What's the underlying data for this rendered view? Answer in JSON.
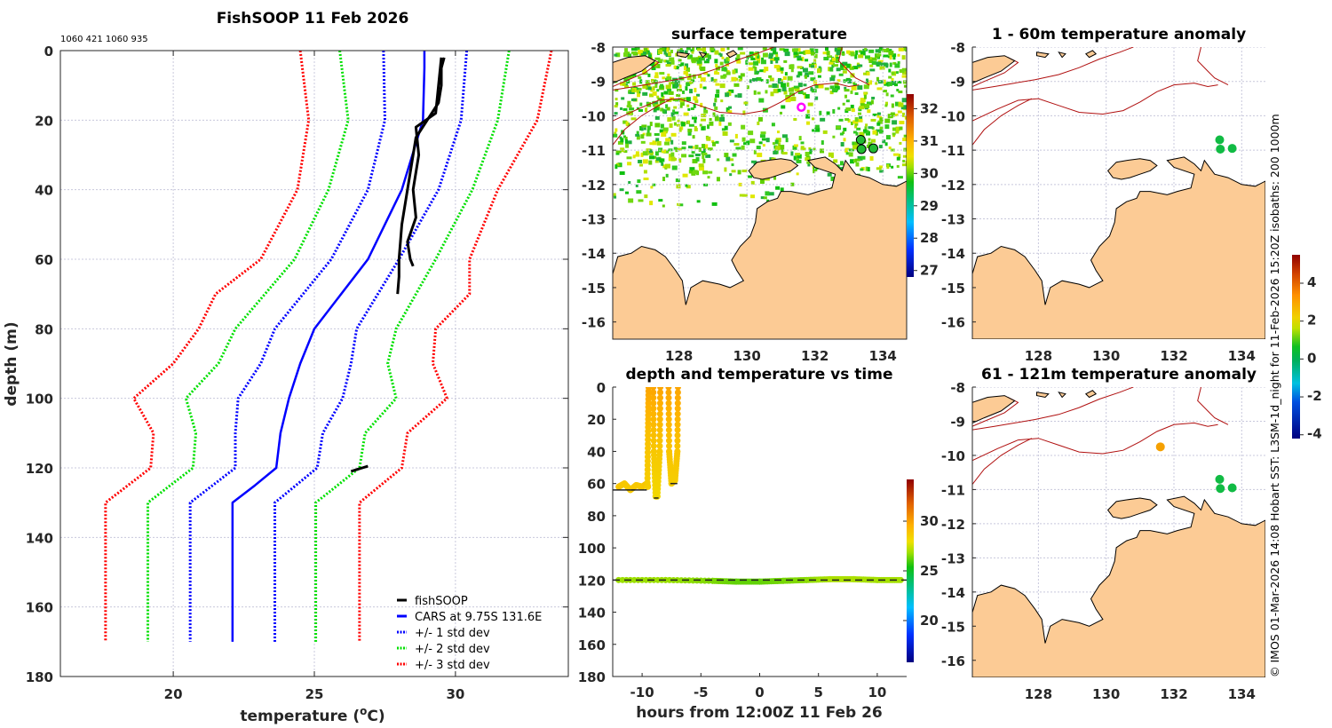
{
  "figure": {
    "credit_text": "© IMOS 01-Mar-2026 14:08 Hobart SST: L3SM-1d_night for 11-Feb-2026 15:20Z isobaths: 200  1000m"
  },
  "chart_data": [
    {
      "id": "profile",
      "type": "line",
      "title": "FishSOOP 11 Feb 2026",
      "subtitle": "1060 421 1060 935",
      "xlabel": "temperature (°C)",
      "ylabel": "depth (m)",
      "xlim": [
        16,
        34
      ],
      "ylim": [
        0,
        180
      ],
      "y_reversed": true,
      "xticks": [
        20,
        25,
        30
      ],
      "yticks": [
        0,
        20,
        40,
        60,
        80,
        100,
        120,
        140,
        160,
        180
      ],
      "grid": true,
      "legend_position": "bottom-right",
      "series": [
        {
          "name": "fishSOOP",
          "color": "#000000",
          "style": "solid",
          "depth": [
            2,
            5,
            10,
            15,
            20,
            25,
            30,
            40,
            50,
            60,
            65,
            70
          ],
          "temp": [
            29.6,
            29.5,
            29.5,
            29.4,
            29.0,
            28.6,
            28.5,
            28.3,
            28.1,
            28.0,
            28.0,
            27.95
          ]
        },
        {
          "name": "fishSOOP",
          "color": "#000000",
          "style": "solid",
          "depth": [
            2,
            10,
            18,
            22,
            30,
            40,
            48,
            55,
            60,
            62
          ],
          "temp": [
            29.5,
            29.4,
            29.3,
            28.6,
            28.7,
            28.5,
            28.6,
            28.3,
            28.4,
            28.5
          ]
        },
        {
          "name": "fishSOOP",
          "color": "#000000",
          "style": "solid",
          "depth": [
            121,
            120.5,
            120,
            119.5
          ],
          "temp": [
            26.3,
            26.5,
            26.7,
            26.9
          ]
        },
        {
          "name": "CARS at 9.75S 131.6E",
          "color": "#0000ff",
          "style": "solid",
          "depth": [
            0,
            5,
            20,
            40,
            60,
            80,
            90,
            100,
            110,
            120,
            125,
            130,
            170
          ],
          "temp": [
            28.9,
            28.9,
            28.85,
            28.1,
            26.9,
            25.0,
            24.5,
            24.1,
            23.8,
            23.65,
            22.9,
            22.1,
            22.1
          ]
        },
        {
          "name": "+/- 1 std dev",
          "color": "#0000ff",
          "style": "dotted",
          "depth": [
            0,
            20,
            40,
            60,
            80,
            90,
            100,
            110,
            120,
            130,
            170
          ],
          "temp": [
            30.4,
            30.2,
            29.4,
            28.0,
            26.5,
            26.3,
            26.0,
            25.3,
            25.1,
            23.6,
            23.6
          ]
        },
        {
          "name": "+/- 1 std dev",
          "color": "#0000ff",
          "style": "dotted",
          "depth": [
            0,
            20,
            40,
            60,
            80,
            90,
            100,
            110,
            120,
            130,
            170
          ],
          "temp": [
            27.45,
            27.5,
            26.9,
            25.6,
            23.6,
            23.1,
            22.3,
            22.2,
            22.2,
            20.6,
            20.6
          ]
        },
        {
          "name": "+/- 2 std dev",
          "color": "#00e000",
          "style": "dotted",
          "depth": [
            0,
            20,
            40,
            60,
            80,
            90,
            100,
            110,
            120,
            130,
            170
          ],
          "temp": [
            31.9,
            31.5,
            30.6,
            29.3,
            27.9,
            27.6,
            27.9,
            26.8,
            26.6,
            25.05,
            25.05
          ]
        },
        {
          "name": "+/- 2 std dev",
          "color": "#00e000",
          "style": "dotted",
          "depth": [
            0,
            20,
            40,
            60,
            80,
            90,
            100,
            110,
            120,
            130,
            170
          ],
          "temp": [
            25.9,
            26.2,
            25.5,
            24.3,
            22.2,
            21.6,
            20.45,
            20.8,
            20.7,
            19.1,
            19.1
          ]
        },
        {
          "name": "+/- 3 std dev",
          "color": "#ff0000",
          "style": "dotted",
          "depth": [
            0,
            20,
            40,
            60,
            70,
            80,
            90,
            100,
            110,
            120,
            130,
            170
          ],
          "temp": [
            33.4,
            32.9,
            31.5,
            30.5,
            30.5,
            29.3,
            29.2,
            29.7,
            28.3,
            28.1,
            26.6,
            26.6
          ]
        },
        {
          "name": "+/- 3 std dev",
          "color": "#ff0000",
          "style": "dotted",
          "depth": [
            0,
            20,
            40,
            60,
            70,
            80,
            90,
            100,
            110,
            120,
            130,
            170
          ],
          "temp": [
            24.5,
            24.8,
            24.4,
            23.1,
            21.5,
            20.9,
            20.0,
            18.6,
            19.3,
            19.2,
            17.6,
            17.6
          ]
        }
      ],
      "legend": [
        {
          "label": "fishSOOP",
          "color": "#000000",
          "style": "solid"
        },
        {
          "label": "CARS at 9.75S 131.6E",
          "color": "#0000ff",
          "style": "solid"
        },
        {
          "label": "+/- 1 std dev",
          "color": "#0000ff",
          "style": "dotted"
        },
        {
          "label": "+/- 2 std dev",
          "color": "#00e000",
          "style": "dotted"
        },
        {
          "label": "+/- 3 std dev",
          "color": "#ff0000",
          "style": "dotted"
        }
      ]
    },
    {
      "id": "surface",
      "type": "heatmap",
      "title": "surface temperature",
      "xlim": [
        126.05,
        134.7
      ],
      "ylim": [
        -16.5,
        -8
      ],
      "xticks": [
        128,
        130,
        132,
        134
      ],
      "yticks": [
        -8,
        -9,
        -10,
        -11,
        -12,
        -13,
        -14,
        -15,
        -16
      ],
      "colorbar": {
        "range": [
          26.8,
          32.45
        ],
        "ticks": [
          27,
          28,
          29,
          30,
          31,
          32
        ],
        "colormap": "jet-like"
      },
      "markers": [
        {
          "type": "ring",
          "lon": 131.6,
          "lat": -9.75,
          "color": "#ff00ff"
        },
        {
          "type": "dot",
          "lon": 133.35,
          "lat": -10.7,
          "color": "#22bb33"
        },
        {
          "type": "dot",
          "lon": 133.37,
          "lat": -10.97,
          "color": "#22bb33"
        },
        {
          "type": "dot",
          "lon": 133.72,
          "lat": -10.95,
          "color": "#22bb33"
        }
      ]
    },
    {
      "id": "timeseries",
      "type": "scatter",
      "title": "depth and temperature vs time",
      "xlabel": "hours from 12:00Z 11 Feb 26",
      "xlim": [
        -12.5,
        12.5
      ],
      "ylim": [
        0,
        180
      ],
      "y_reversed": true,
      "xticks": [
        -10,
        -5,
        0,
        5,
        10
      ],
      "yticks": [
        0,
        20,
        40,
        60,
        80,
        100,
        120,
        140,
        160,
        180
      ],
      "colorbar": {
        "range": [
          15.8,
          34.2
        ],
        "ticks": [
          20,
          25,
          30
        ],
        "colormap": "jet"
      },
      "tracks": [
        {
          "hours": [
            -12,
            -11.5,
            -11,
            -10.5,
            -10,
            -9.6,
            -9.5
          ],
          "depth": [
            62,
            60,
            64,
            61,
            62,
            60,
            62
          ],
          "temp": [
            28.9,
            28.8,
            28.7,
            28.8,
            28.7,
            28.9,
            28.8
          ]
        },
        {
          "hours": [
            -9.55,
            -9.5,
            -9.45
          ],
          "depth": [
            62,
            30,
            0
          ],
          "temp": [
            28.6,
            29.0,
            29.9
          ]
        },
        {
          "hours": [
            -9.05,
            -9.0,
            -8.85,
            -8.7,
            -8.5,
            -8.45
          ],
          "depth": [
            0,
            40,
            68,
            68,
            40,
            0
          ],
          "temp": [
            29.9,
            28.8,
            28.2,
            28.2,
            28.8,
            29.9
          ]
        },
        {
          "hours": [
            -7.75,
            -7.7,
            -7.5,
            -7.2,
            -7.0,
            -6.95
          ],
          "depth": [
            0,
            40,
            60,
            58,
            40,
            0
          ],
          "temp": [
            29.9,
            28.9,
            28.6,
            28.6,
            28.9,
            29.9
          ]
        },
        {
          "hours": [
            -12,
            -8,
            -4,
            -2,
            0,
            2,
            4,
            6,
            8,
            10,
            12
          ],
          "depth": [
            120,
            120,
            120.5,
            121,
            121,
            120.5,
            120,
            119.5,
            119.5,
            120,
            120
          ],
          "temp": [
            26.8,
            26.8,
            26.5,
            26.2,
            26.2,
            26.4,
            26.6,
            27.0,
            27.0,
            26.9,
            26.9
          ]
        }
      ],
      "bottom_marks": [
        {
          "hours": [
            -12.5,
            -10.6
          ],
          "depth": 64
        },
        {
          "hours": [
            -10.9,
            -9.6
          ],
          "depth": 64
        },
        {
          "hours": [
            -9.0,
            -8.6
          ],
          "depth": 69
        },
        {
          "hours": [
            -7.6,
            -7.0
          ],
          "depth": 60
        },
        {
          "hours": [
            -12.5,
            12.5
          ],
          "depth": 120
        }
      ]
    },
    {
      "id": "anom1",
      "type": "scatter",
      "title": "1 - 60m temperature anomaly",
      "xlim": [
        126.05,
        134.7
      ],
      "ylim": [
        -16.5,
        -8
      ],
      "xticks": [
        128,
        130,
        132,
        134
      ],
      "yticks": [
        -8,
        -9,
        -10,
        -11,
        -12,
        -13,
        -14,
        -15,
        -16
      ],
      "points": [
        {
          "lon": 133.35,
          "lat": -10.7,
          "anomaly": 0.2,
          "color": "#11bb44"
        },
        {
          "lon": 133.37,
          "lat": -10.97,
          "anomaly": 0.2,
          "color": "#11bb44"
        },
        {
          "lon": 133.72,
          "lat": -10.95,
          "anomaly": 0.2,
          "color": "#11bb44"
        }
      ]
    },
    {
      "id": "anom2",
      "type": "scatter",
      "title": "61 - 121m temperature anomaly",
      "xlim": [
        126.05,
        134.7
      ],
      "ylim": [
        -16.5,
        -8
      ],
      "xticks": [
        128,
        130,
        132,
        134
      ],
      "yticks": [
        -8,
        -9,
        -10,
        -11,
        -12,
        -13,
        -14,
        -15,
        -16
      ],
      "points": [
        {
          "lon": 131.6,
          "lat": -9.75,
          "anomaly": 2.7,
          "color": "#f5a000"
        },
        {
          "lon": 133.35,
          "lat": -10.7,
          "anomaly": 0.2,
          "color": "#11bb44"
        },
        {
          "lon": 133.37,
          "lat": -10.97,
          "anomaly": 0.2,
          "color": "#11bb44"
        },
        {
          "lon": 133.72,
          "lat": -10.95,
          "anomaly": 0.2,
          "color": "#11bb44"
        }
      ],
      "colorbar": {
        "range": [
          -4.2,
          5.5
        ],
        "ticks": [
          -4,
          -2,
          0,
          2,
          4
        ],
        "colormap": "anomaly"
      }
    }
  ]
}
